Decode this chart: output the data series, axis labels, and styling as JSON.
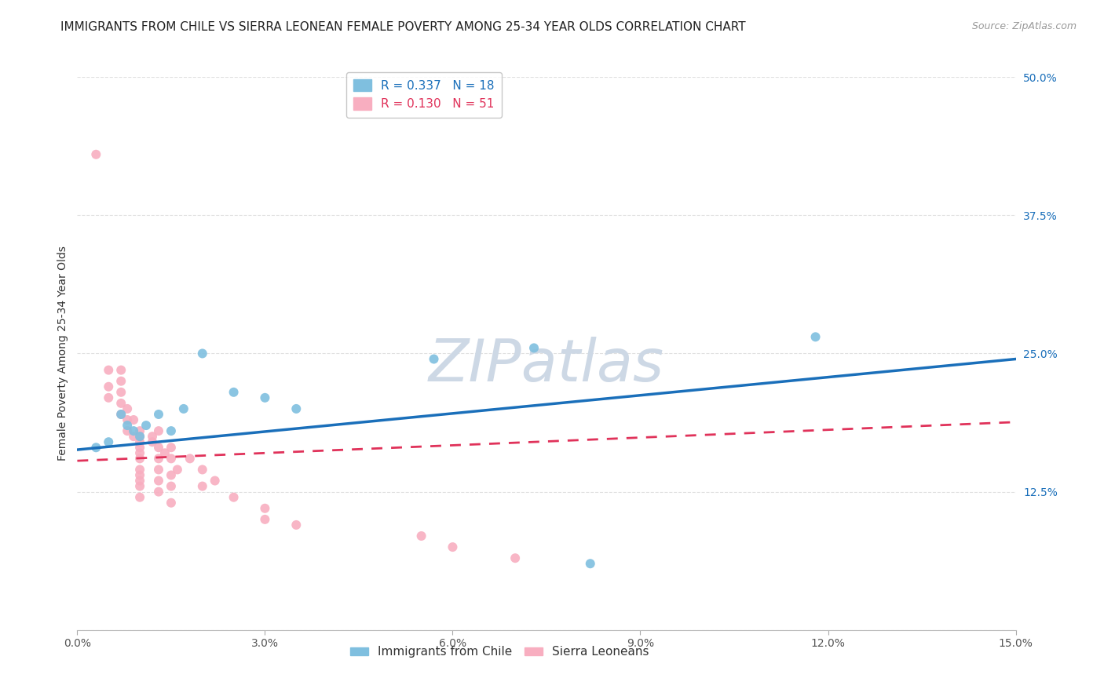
{
  "title": "IMMIGRANTS FROM CHILE VS SIERRA LEONEAN FEMALE POVERTY AMONG 25-34 YEAR OLDS CORRELATION CHART",
  "source": "Source: ZipAtlas.com",
  "ylabel": "Female Poverty Among 25-34 Year Olds",
  "xlim": [
    0.0,
    0.15
  ],
  "ylim": [
    0.0,
    0.5
  ],
  "xticks": [
    0.0,
    0.03,
    0.06,
    0.09,
    0.12,
    0.15
  ],
  "xticklabels": [
    "0.0%",
    "3.0%",
    "6.0%",
    "9.0%",
    "12.0%",
    "15.0%"
  ],
  "yticks": [
    0.0,
    0.125,
    0.25,
    0.375,
    0.5
  ],
  "yticklabels": [
    "",
    "12.5%",
    "25.0%",
    "37.5%",
    "50.0%"
  ],
  "blue_R": 0.337,
  "blue_N": 18,
  "pink_R": 0.13,
  "pink_N": 51,
  "blue_color": "#7fbfdf",
  "pink_color": "#f8aec0",
  "blue_line_color": "#1a6fba",
  "pink_line_color": "#e0325a",
  "blue_scatter_x": [
    0.003,
    0.005,
    0.007,
    0.008,
    0.009,
    0.01,
    0.011,
    0.013,
    0.015,
    0.017,
    0.02,
    0.025,
    0.03,
    0.035,
    0.057,
    0.073,
    0.082,
    0.118
  ],
  "blue_scatter_y": [
    0.165,
    0.17,
    0.195,
    0.185,
    0.18,
    0.175,
    0.185,
    0.195,
    0.18,
    0.2,
    0.25,
    0.215,
    0.21,
    0.2,
    0.245,
    0.255,
    0.06,
    0.265
  ],
  "pink_scatter_x": [
    0.003,
    0.005,
    0.005,
    0.005,
    0.007,
    0.007,
    0.007,
    0.007,
    0.007,
    0.008,
    0.008,
    0.008,
    0.009,
    0.009,
    0.01,
    0.01,
    0.01,
    0.01,
    0.01,
    0.01,
    0.01,
    0.01,
    0.01,
    0.01,
    0.01,
    0.012,
    0.012,
    0.013,
    0.013,
    0.013,
    0.013,
    0.013,
    0.013,
    0.014,
    0.015,
    0.015,
    0.015,
    0.015,
    0.015,
    0.016,
    0.018,
    0.02,
    0.02,
    0.022,
    0.025,
    0.03,
    0.03,
    0.035,
    0.055,
    0.06,
    0.07
  ],
  "pink_scatter_y": [
    0.43,
    0.235,
    0.22,
    0.21,
    0.235,
    0.225,
    0.215,
    0.205,
    0.195,
    0.2,
    0.19,
    0.18,
    0.19,
    0.175,
    0.18,
    0.175,
    0.17,
    0.165,
    0.16,
    0.155,
    0.145,
    0.14,
    0.135,
    0.13,
    0.12,
    0.175,
    0.17,
    0.18,
    0.165,
    0.155,
    0.145,
    0.135,
    0.125,
    0.16,
    0.165,
    0.155,
    0.14,
    0.13,
    0.115,
    0.145,
    0.155,
    0.145,
    0.13,
    0.135,
    0.12,
    0.11,
    0.1,
    0.095,
    0.085,
    0.075,
    0.065
  ],
  "watermark_text": "ZIPatlas",
  "watermark_color": "#cdd8e5",
  "grid_color": "#e0e0e0",
  "background_color": "#ffffff",
  "title_fontsize": 11,
  "axis_label_fontsize": 10,
  "tick_fontsize": 10,
  "legend_fontsize": 11
}
